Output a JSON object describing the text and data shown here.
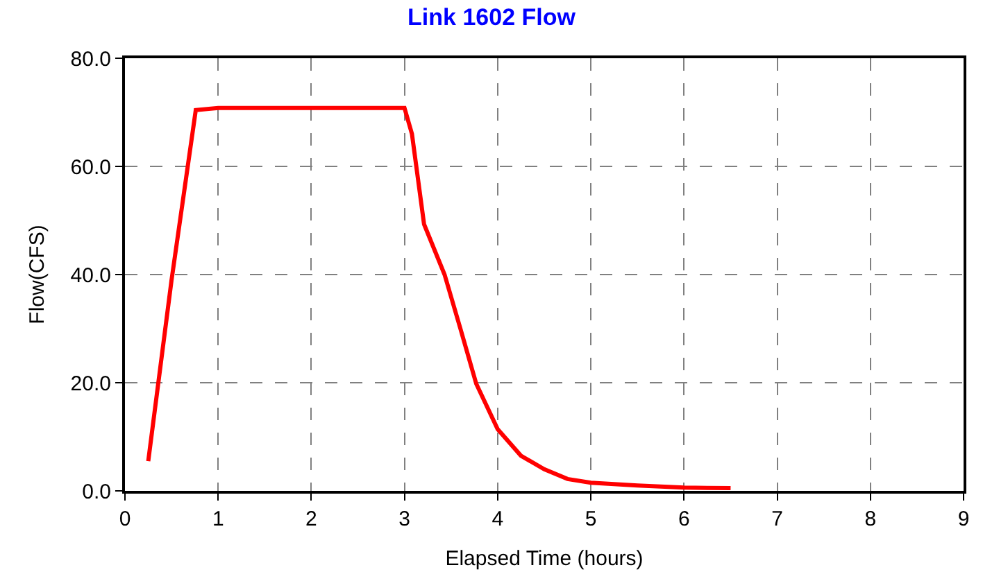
{
  "chart_data": {
    "type": "line",
    "title": "Link 1602 Flow",
    "xlabel": "Elapsed Time (hours)",
    "ylabel": "Flow(CFS)",
    "x": [
      0.25,
      0.5,
      0.76,
      1.0,
      3.0,
      3.08,
      3.21,
      3.43,
      3.6,
      3.77,
      4.0,
      4.25,
      4.5,
      4.75,
      5.0,
      5.5,
      6.0,
      6.5
    ],
    "series": [
      {
        "color": "#ff0000",
        "values": [
          5.5,
          39,
          70.4,
          70.8,
          70.8,
          66,
          49.3,
          40,
          30,
          19.8,
          11.4,
          6.5,
          4,
          2.2,
          1.5,
          1,
          0.6,
          0.5
        ]
      }
    ],
    "xlim": [
      0,
      9
    ],
    "xticks": [
      0,
      1,
      2,
      3,
      4,
      5,
      6,
      7,
      8,
      9
    ],
    "ylim": [
      0,
      80
    ],
    "yticks": [
      {
        "value": 0,
        "label": "0.0"
      },
      {
        "value": 20,
        "label": "20.0"
      },
      {
        "value": 40,
        "label": "40.0"
      },
      {
        "value": 60,
        "label": "60.0"
      },
      {
        "value": 80,
        "label": "80.0"
      }
    ],
    "grid": true,
    "marker": "none",
    "line_style": "solid"
  }
}
